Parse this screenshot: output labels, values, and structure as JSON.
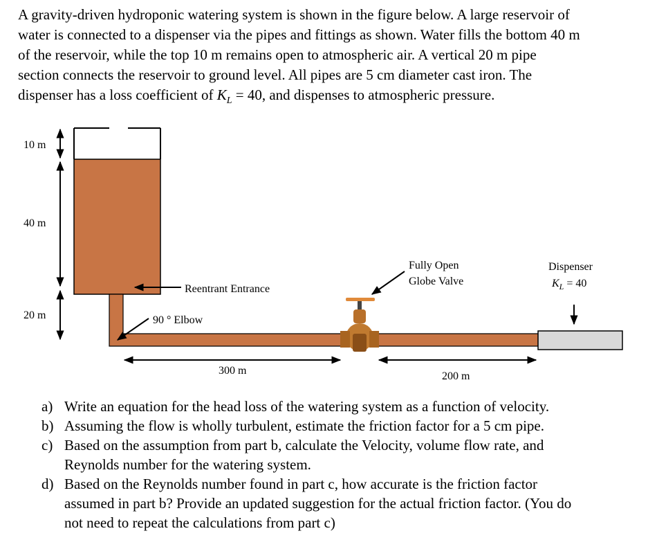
{
  "problem": {
    "lines": [
      "A gravity-driven hydroponic watering system is shown in the figure below. A large reservoir of",
      "water is connected to a dispenser via the pipes and fittings as shown. Water fills the bottom 40 m",
      "of the reservoir, while the top 10 m remains open to atmospheric air. A vertical 20 m pipe",
      "section connects the reservoir to ground level. All pipes are 5 cm diameter cast iron. The"
    ],
    "last_line_before": "dispenser has a loss coefficient of ",
    "k_symbol": "K",
    "k_subscript": "L",
    "last_line_after": " = 40, and dispenses to atmospheric pressure."
  },
  "figure": {
    "height_top": "10 m",
    "height_water": "40 m",
    "height_pipe": "20 m",
    "entrance": "Reentrant Entrance",
    "elbow": "90 ° Elbow",
    "valve_line1": "Fully Open",
    "valve_line2": "Globe Valve",
    "length_1": "300 m",
    "length_2": "200 m",
    "dispenser": "Dispenser",
    "dispenser_k": "K",
    "dispenser_sub": "L",
    "dispenser_value": " = 40"
  },
  "questions": [
    {
      "label": "a)",
      "lines": [
        "Write an equation for the head loss of the watering system as a function of velocity."
      ]
    },
    {
      "label": "b)",
      "lines": [
        "Assuming the flow is wholly turbulent, estimate the friction factor for a 5 cm pipe."
      ]
    },
    {
      "label": "c)",
      "lines": [
        "Based on the assumption from part b, calculate the Velocity, volume flow rate, and",
        "Reynolds number for the watering system."
      ]
    },
    {
      "label": "d)",
      "lines": [
        "Based on the Reynolds number found in part c, how accurate is the friction factor",
        "assumed in part b? Provide an updated suggestion for the actual friction factor. (You do",
        "not need to repeat the calculations from part c)"
      ]
    }
  ]
}
